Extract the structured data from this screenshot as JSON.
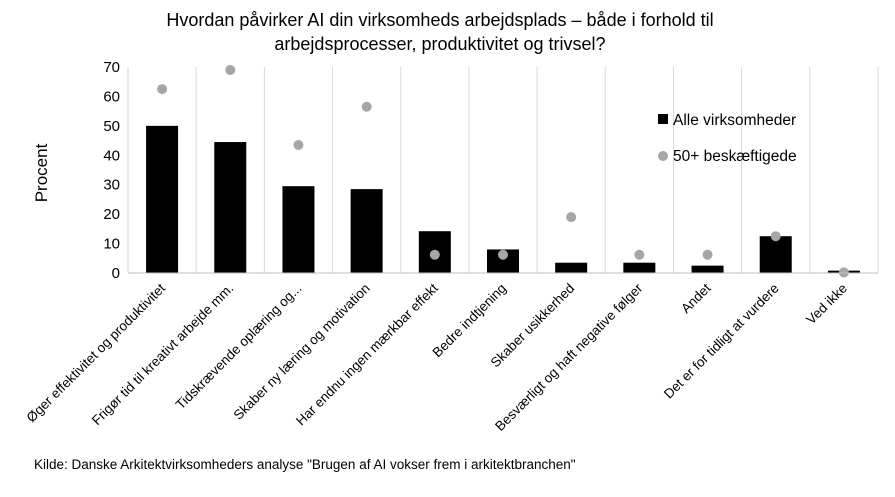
{
  "chart_data": {
    "type": "bar",
    "title": "Hvordan påvirker AI din virksomheds arbejdsplads – både i forhold til arbejdsprocesser, produktivitet og trivsel?",
    "title_lines": [
      "Hvordan påvirker AI din virksomheds arbejdsplads – både i forhold til",
      "arbejdsprocesser, produktivitet og trivsel?"
    ],
    "ylabel": "Procent",
    "xlabel": "",
    "ylim": [
      0,
      70
    ],
    "yticks": [
      0,
      10,
      20,
      30,
      40,
      50,
      60,
      70
    ],
    "grid": "vertical",
    "legend_position": "right",
    "categories": [
      "Øger effektivitet og produktivitet",
      "Frigør tid til kreativt arbejde mm.",
      "Tidskrævende oplæring og...",
      "Skaber ny læring og motivation",
      "Har endnu ingen mærkbar effekt",
      "Bedre indtjening",
      "Skaber usikkerhed",
      "Besværligt og haft negative følger",
      "Andet",
      "Det er for tidligt at vurdere",
      "Ved ikke"
    ],
    "series": [
      {
        "name": "Alle virksomheder",
        "kind": "bar",
        "color": "#000000",
        "values": [
          50,
          44.5,
          29.5,
          28.5,
          14.2,
          8,
          3.5,
          3.5,
          2.5,
          12.5,
          0.8
        ]
      },
      {
        "name": "50+ beskæftigede",
        "kind": "dot",
        "color": "#a6a6a6",
        "values": [
          62.5,
          69,
          43.5,
          56.5,
          6.2,
          6.2,
          19,
          6.2,
          6.2,
          12.5,
          0.2
        ]
      }
    ]
  },
  "source": "Kilde: Danske Arkitektvirksomheders analyse \"Brugen af AI vokser frem i arkitektbranchen\""
}
